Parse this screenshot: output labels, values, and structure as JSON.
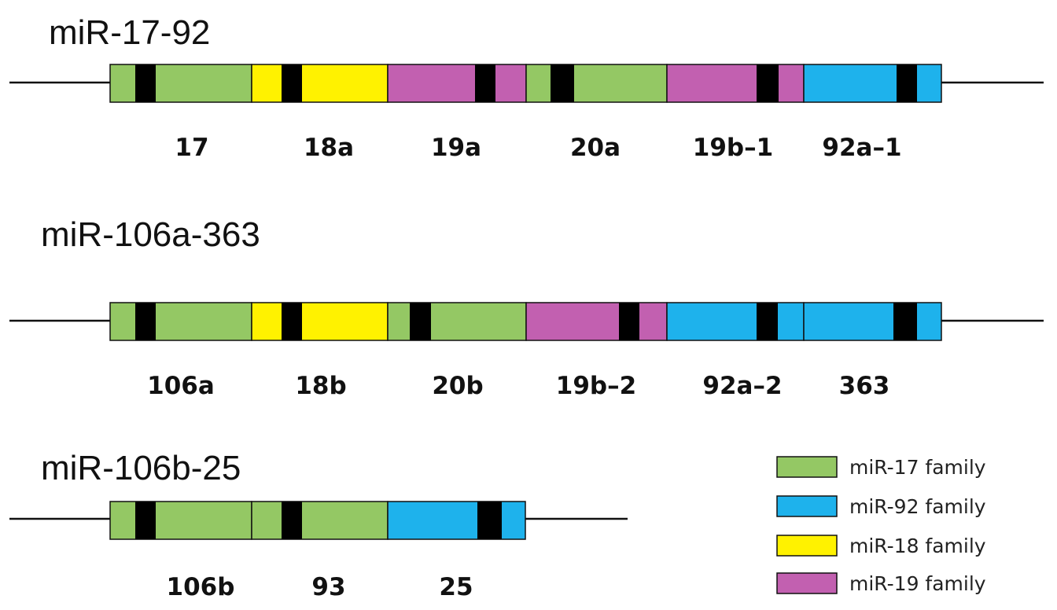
{
  "colors": {
    "mir17": "#94c864",
    "mir92": "#1eb2ec",
    "mir18": "#fff200",
    "mir19": "#c260b0",
    "seed": "#000000",
    "line": "#111111"
  },
  "clusters": [
    {
      "title": "miR-17-92",
      "labels": [
        "17",
        "18a",
        "19a",
        "20a",
        "19b–1",
        "92a–1"
      ]
    },
    {
      "title": "miR-106a-363",
      "labels": [
        "106a",
        "18b",
        "20b",
        "19b–2",
        "92a–2",
        "363"
      ]
    },
    {
      "title": "miR-106b-25",
      "labels": [
        "106b",
        "93",
        "25"
      ]
    }
  ],
  "legend": [
    {
      "label": "miR-17 family",
      "color": "mir17"
    },
    {
      "label": "miR-92 family",
      "color": "mir92"
    },
    {
      "label": "miR-18 family",
      "color": "mir18"
    },
    {
      "label": "miR-19 family",
      "color": "mir19"
    }
  ]
}
